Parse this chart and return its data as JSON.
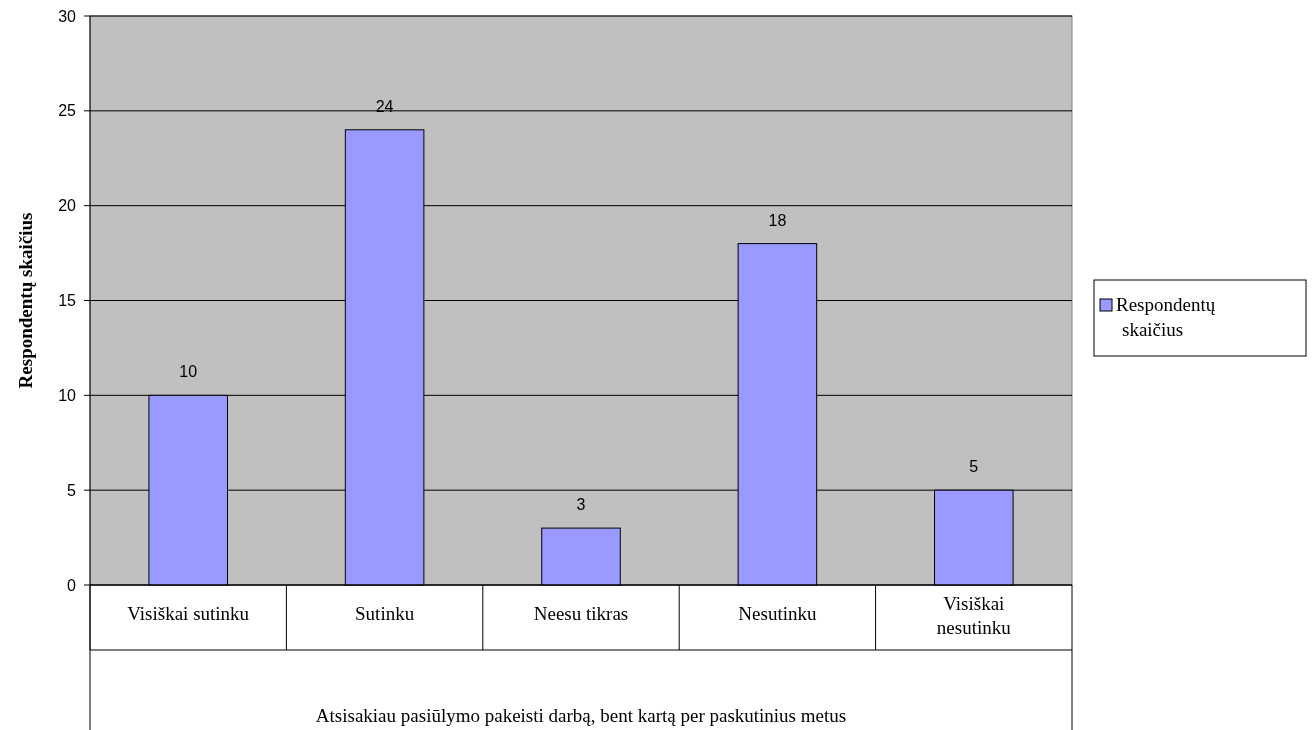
{
  "chart_data": {
    "type": "bar",
    "categories": [
      "Visiškai sutinku",
      "Sutinku",
      "Neesu tikras",
      "Nesutinku",
      "Visiškai nesutinku"
    ],
    "series": [
      {
        "name": "Respondentų skaičius",
        "color": "#9999ff",
        "values": [
          10,
          24,
          3,
          18,
          5
        ]
      }
    ],
    "xlabel": "Atsisakiau pasiūlymo pakeisti darbą, bent kartą per paskutinius metus",
    "ylabel": "Respondentų skaičius",
    "ylim": [
      0,
      30
    ],
    "yticks": [
      0,
      5,
      10,
      15,
      20,
      25,
      30
    ],
    "grid": "y",
    "legend": "right",
    "data_labels": true
  }
}
